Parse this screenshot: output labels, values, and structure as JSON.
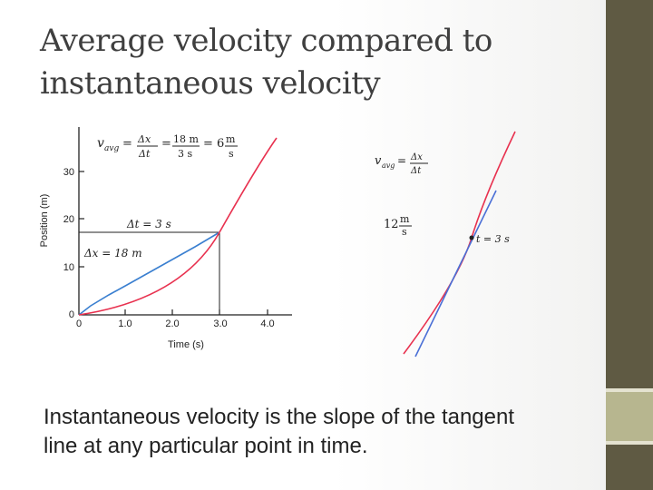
{
  "title": {
    "line1": "Average velocity compared to",
    "line2": "instantaneous velocity"
  },
  "graph": {
    "ylabel": "Position (m)",
    "xlabel": "Time (s)",
    "y_ticks": [
      "0",
      "10",
      "20",
      "30"
    ],
    "x_ticks": [
      "0",
      "1.0",
      "2.0",
      "3.0",
      "4.0"
    ],
    "avg_formula": {
      "v": "v",
      "sub": "avg",
      "eq": "=",
      "dx": "Δx",
      "dt": "Δt",
      "num": "18 m",
      "den": "3 s",
      "result": "= 6",
      "unit_num": "m",
      "unit_den": "s"
    },
    "dt_label": "Δt = 3 s",
    "dx_label": "Δx = 18 m"
  },
  "tangent": {
    "formula_v": "v",
    "formula_sub": "avg",
    "formula_eq": "=",
    "formula_dx": "Δx",
    "formula_dt": "Δt",
    "value": "12",
    "unit_num": "m",
    "unit_den": "s",
    "point_label": "t = 3 s"
  },
  "caption": {
    "line1": "Instantaneous velocity is the slope of the tangent",
    "line2": "line at any particular point in time."
  },
  "colors": {
    "curve": "#e8314f",
    "secant": "#3a7fd0",
    "tangent_line": "#4a6fd6",
    "accent": "#5f5a43"
  }
}
